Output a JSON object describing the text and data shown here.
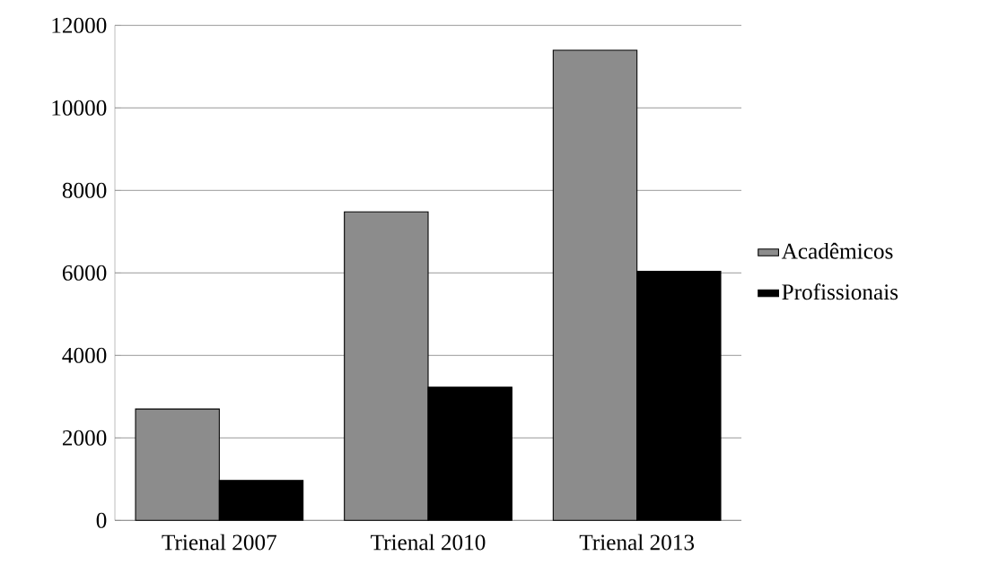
{
  "chart_data": {
    "type": "bar",
    "categories": [
      "Trienal 2007",
      "Trienal 2010",
      "Trienal 2013"
    ],
    "series": [
      {
        "name": "Acadêmicos",
        "color": "#8c8c8c",
        "values": [
          2700,
          7480,
          11400
        ]
      },
      {
        "name": "Profissionais",
        "color": "#000000",
        "values": [
          970,
          3230,
          6040
        ]
      }
    ],
    "ylim": [
      0,
      12000
    ],
    "yticks": [
      0,
      2000,
      4000,
      6000,
      8000,
      10000,
      12000
    ],
    "grid": "y",
    "legend": "right"
  }
}
